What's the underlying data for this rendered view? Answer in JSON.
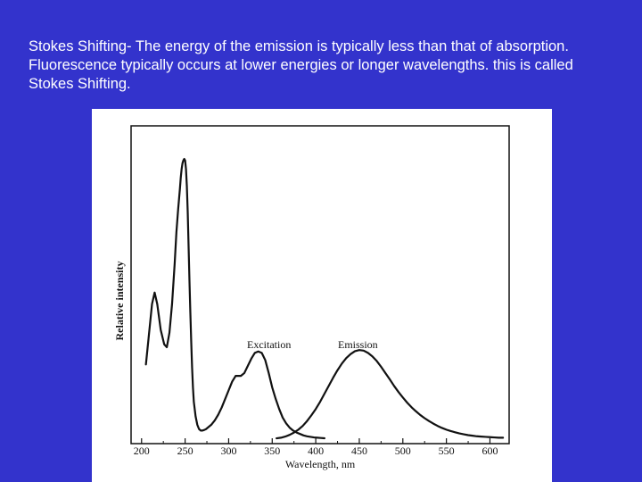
{
  "slide": {
    "text": "Stokes Shifting- The energy of the emission is typically less than that of absorption. Fluorescence typically occurs at lower energies or longer wavelengths. this is called Stokes Shifting."
  },
  "chart_data": {
    "type": "line",
    "title": "",
    "xlabel": "Wavelength, nm",
    "ylabel": "Relative intensity",
    "xlim": [
      190,
      620
    ],
    "ylim": [
      0,
      100
    ],
    "x_ticks": [
      200,
      250,
      300,
      350,
      400,
      450,
      500,
      550,
      600
    ],
    "y_ticks_labeled": false,
    "grid": false,
    "legend": "none",
    "series": [
      {
        "name": "Excitation",
        "color": "#111111",
        "x": [
          205,
          208,
          212,
          215,
          218,
          222,
          226,
          229,
          232,
          235,
          238,
          240,
          242,
          244,
          245,
          246,
          247,
          248,
          249,
          250,
          251,
          252,
          253,
          254,
          255,
          256,
          257,
          258,
          259,
          260,
          262,
          264,
          266,
          268,
          270,
          272,
          274,
          276,
          278,
          280,
          284,
          288,
          292,
          296,
          300,
          304,
          308,
          312,
          314,
          318,
          322,
          326,
          330,
          334,
          338,
          342,
          346,
          350,
          354,
          358,
          362,
          366,
          370,
          374,
          378,
          382,
          386,
          390,
          394,
          398,
          402,
          406,
          410
        ],
        "y": [
          26,
          35,
          47,
          51,
          47,
          38,
          33,
          32,
          37,
          47,
          61,
          72,
          80,
          87,
          91,
          94,
          96,
          97,
          97.5,
          97,
          94,
          88,
          79,
          67,
          55,
          44,
          34,
          25,
          18,
          13,
          8,
          5,
          3.5,
          3,
          3,
          3.2,
          3.5,
          4,
          4.5,
          5,
          6.5,
          8.5,
          11,
          14,
          17,
          20,
          22,
          22,
          22,
          23,
          25.5,
          28,
          30,
          30.5,
          30,
          27.5,
          23,
          18,
          14,
          10.5,
          7.5,
          5.5,
          4,
          3,
          2.3,
          1.8,
          1.3,
          1,
          0.8,
          0.6,
          0.5,
          0.4,
          0.3
        ]
      },
      {
        "name": "Emission",
        "color": "#111111",
        "x": [
          355,
          360,
          365,
          370,
          375,
          380,
          385,
          390,
          395,
          400,
          405,
          410,
          415,
          420,
          425,
          430,
          435,
          440,
          445,
          450,
          455,
          460,
          465,
          470,
          475,
          480,
          485,
          490,
          495,
          500,
          505,
          510,
          515,
          520,
          525,
          530,
          535,
          540,
          545,
          550,
          555,
          560,
          565,
          570,
          575,
          580,
          585,
          590,
          595,
          600,
          605,
          610,
          615
        ],
        "y": [
          0.3,
          0.5,
          0.9,
          1.5,
          2.3,
          3.3,
          4.6,
          6.3,
          8.3,
          10.5,
          13,
          15.8,
          18.6,
          21.4,
          24,
          26.3,
          28.2,
          29.6,
          30.6,
          31,
          30.8,
          30,
          28.8,
          27.2,
          25.2,
          23,
          20.8,
          18.5,
          16.4,
          14.5,
          12.7,
          11.1,
          9.7,
          8.4,
          7.3,
          6.3,
          5.4,
          4.6,
          3.9,
          3.3,
          2.8,
          2.4,
          2,
          1.7,
          1.4,
          1.2,
          1,
          0.9,
          0.8,
          0.7,
          0.6,
          0.5,
          0.5
        ]
      }
    ]
  }
}
